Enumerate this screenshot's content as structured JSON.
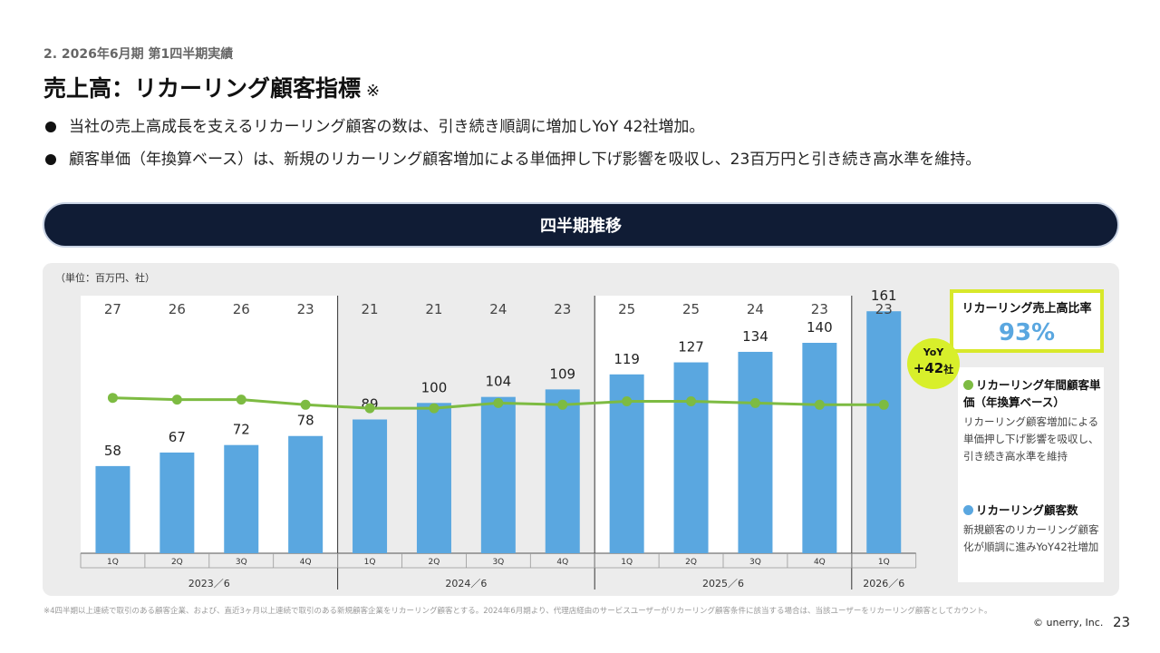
{
  "header": {
    "breadcrumb": "2. 2026年6月期 第1四半期実績",
    "title": "売上高：リカーリング顧客指標",
    "title_note": "※"
  },
  "bullets": [
    "当社の売上高成長を支えるリカーリング顧客の数は、引き続き順調に増加しYoY 42社増加。",
    "顧客単価（年換算ベース）は、新規のリカーリング顧客増加による単価押し下げ影響を吸収し、23百万円と引き続き高水準を維持。"
  ],
  "section_title": "四半期推移",
  "kpi": {
    "label": "リカーリング売上高比率",
    "value": "93%"
  },
  "yoy_badge": {
    "line1": "YoY",
    "value": "+42",
    "unit": "社"
  },
  "legend": {
    "unit_price_title": "リカーリング年間顧客単価（年換算ベース）",
    "unit_price_desc": "リカーリング顧客増加による単価押し下げ影響を吸収し、引き続き高水準を維持",
    "customers_title": "リカーリング顧客数",
    "customers_desc": "新規顧客のリカーリング顧客化が順調に進みYoY42社増加"
  },
  "footnote": "※4四半期以上連続で取引のある顧客企業、および、直近3ヶ月以上連続で取引のある新規顧客企業をリカーリング顧客とする。2024年6月期より、代理店経由のサービスユーザーがリカーリング顧客条件に該当する場合は、当該ユーザーをリカーリング顧客としてカウント。",
  "copyright": "© unerry, Inc.",
  "page_number": "23",
  "colors": {
    "bar": "#5aa7e0",
    "line": "#7dbb42",
    "accent": "#d8ef2b",
    "header_bg": "#101c35"
  },
  "chart_data": {
    "type": "bar+line",
    "unit_label": "（単位：百万円、社）",
    "categories": [
      "1Q",
      "2Q",
      "3Q",
      "4Q",
      "1Q",
      "2Q",
      "3Q",
      "4Q",
      "1Q",
      "2Q",
      "3Q",
      "4Q",
      "1Q"
    ],
    "groups": [
      {
        "label": "2023／6",
        "count": 4
      },
      {
        "label": "2024／6",
        "count": 4
      },
      {
        "label": "2025／6",
        "count": 4
      },
      {
        "label": "2026／6",
        "count": 1
      }
    ],
    "series": [
      {
        "name": "リカーリング顧客数",
        "type": "bar",
        "values": [
          58,
          67,
          72,
          78,
          89,
          100,
          104,
          109,
          119,
          127,
          134,
          140,
          161
        ]
      },
      {
        "name": "リカーリング年間顧客単価（年換算ベース）",
        "type": "line",
        "values": [
          27,
          26,
          26,
          23,
          21,
          21,
          24,
          23,
          25,
          25,
          24,
          23,
          23
        ]
      }
    ],
    "bar_ylim": [
      0,
      175
    ],
    "line_ylim": [
      0,
      27
    ]
  }
}
